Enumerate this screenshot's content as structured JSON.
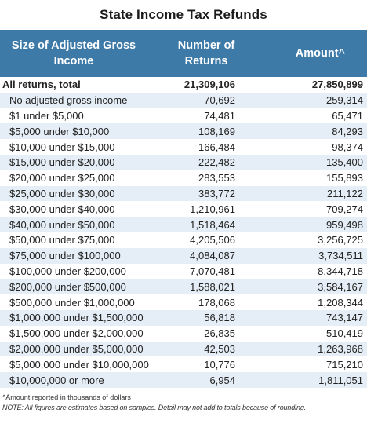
{
  "title": "State Income Tax Refunds",
  "headers": {
    "col1_line1": "Size of Adjusted Gross",
    "col1_line2": "Income",
    "col2_line1": "Number of",
    "col2_line2": "Returns",
    "col3": "Amount^"
  },
  "rows": [
    {
      "label": "All returns, total",
      "returns": "21,309,106",
      "amount": "27,850,899",
      "total": true
    },
    {
      "label": "No adjusted gross income",
      "returns": "70,692",
      "amount": "259,314"
    },
    {
      "label": "$1 under $5,000",
      "returns": "74,481",
      "amount": "65,471"
    },
    {
      "label": "$5,000 under $10,000",
      "returns": "108,169",
      "amount": "84,293"
    },
    {
      "label": "$10,000 under $15,000",
      "returns": "166,484",
      "amount": "98,374"
    },
    {
      "label": "$15,000 under $20,000",
      "returns": "222,482",
      "amount": "135,400"
    },
    {
      "label": "$20,000 under $25,000",
      "returns": "283,553",
      "amount": "155,893"
    },
    {
      "label": "$25,000 under $30,000",
      "returns": "383,772",
      "amount": "211,122"
    },
    {
      "label": "$30,000 under $40,000",
      "returns": "1,210,961",
      "amount": "709,274"
    },
    {
      "label": "$40,000 under $50,000",
      "returns": "1,518,464",
      "amount": "959,498"
    },
    {
      "label": "$50,000 under $75,000",
      "returns": "4,205,506",
      "amount": "3,256,725"
    },
    {
      "label": "$75,000 under $100,000",
      "returns": "4,084,087",
      "amount": "3,734,511"
    },
    {
      "label": "$100,000 under $200,000",
      "returns": "7,070,481",
      "amount": "8,344,718"
    },
    {
      "label": "$200,000 under $500,000",
      "returns": "1,588,021",
      "amount": "3,584,167"
    },
    {
      "label": "$500,000 under $1,000,000",
      "returns": "178,068",
      "amount": "1,208,344"
    },
    {
      "label": "$1,000,000 under $1,500,000",
      "returns": "56,818",
      "amount": "743,147"
    },
    {
      "label": "$1,500,000 under $2,000,000",
      "returns": "26,835",
      "amount": "510,419"
    },
    {
      "label": "$2,000,000 under $5,000,000",
      "returns": "42,503",
      "amount": "1,263,968"
    },
    {
      "label": "$5,000,000 under $10,000,000",
      "returns": "10,776",
      "amount": "715,210"
    },
    {
      "label": "$10,000,000 or more",
      "returns": "6,954",
      "amount": "1,811,051"
    }
  ],
  "notes": {
    "footnote": "^Amount reported in thousands of dollars",
    "note": "NOTE: All figures are estimates based on samples. Detail may not add to totals because of rounding."
  },
  "colors": {
    "header_bg": "#3d7aa8",
    "stripe": "#e5eef6"
  }
}
